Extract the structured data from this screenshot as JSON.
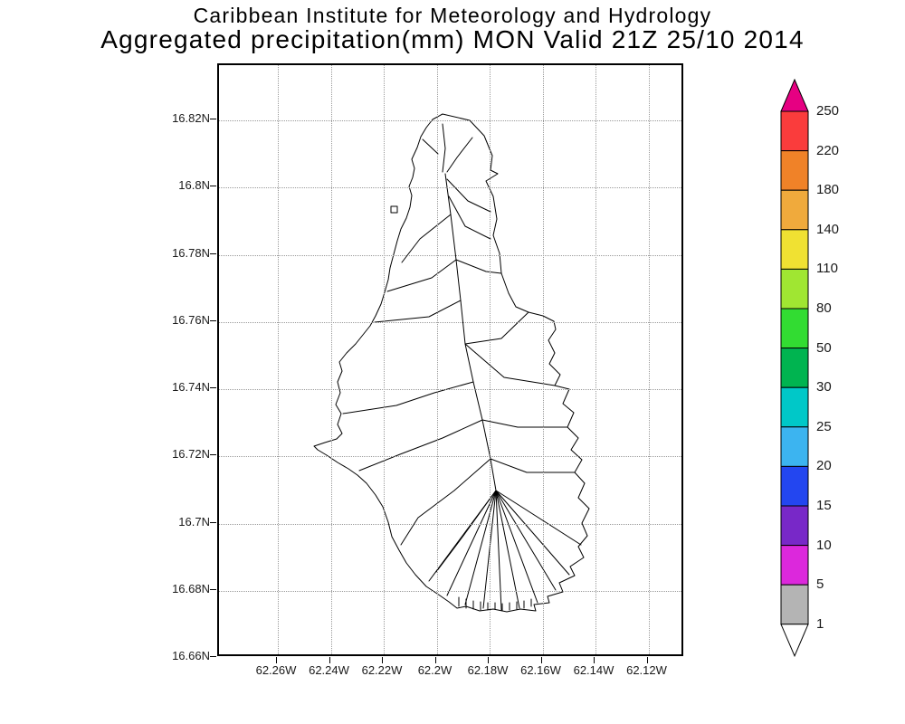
{
  "title": {
    "line1": "Caribbean Institute for Meteorology and Hydrology",
    "line2": "Aggregated precipitation(mm) MON Valid 21Z 25/10 2014"
  },
  "map": {
    "lat_labels": [
      "16.82N",
      "16.8N",
      "16.78N",
      "16.76N",
      "16.74N",
      "16.72N",
      "16.7N",
      "16.68N",
      "16.66N"
    ],
    "lon_labels": [
      "62.26W",
      "62.24W",
      "62.22W",
      "62.2W",
      "62.18W",
      "62.16W",
      "62.14W",
      "62.12W"
    ],
    "grid_color": "#9a9a9a",
    "frame_color": "#000000",
    "coastline_color": "#000000"
  },
  "colorbar": {
    "tick_labels": [
      "250",
      "220",
      "180",
      "140",
      "110",
      "80",
      "50",
      "30",
      "25",
      "20",
      "15",
      "10",
      "5",
      "1"
    ],
    "segment_colors_top_to_bottom": [
      "#fa3c3c",
      "#f08228",
      "#f0aa3c",
      "#f0e132",
      "#a0e632",
      "#32dc32",
      "#00b450",
      "#00c8c8",
      "#3cb4f0",
      "#2346f0",
      "#7828c8",
      "#dc28dc",
      "#b4b4b4"
    ],
    "arrow_top_color": "#e60082",
    "arrow_bottom_color": "#ffffff"
  }
}
